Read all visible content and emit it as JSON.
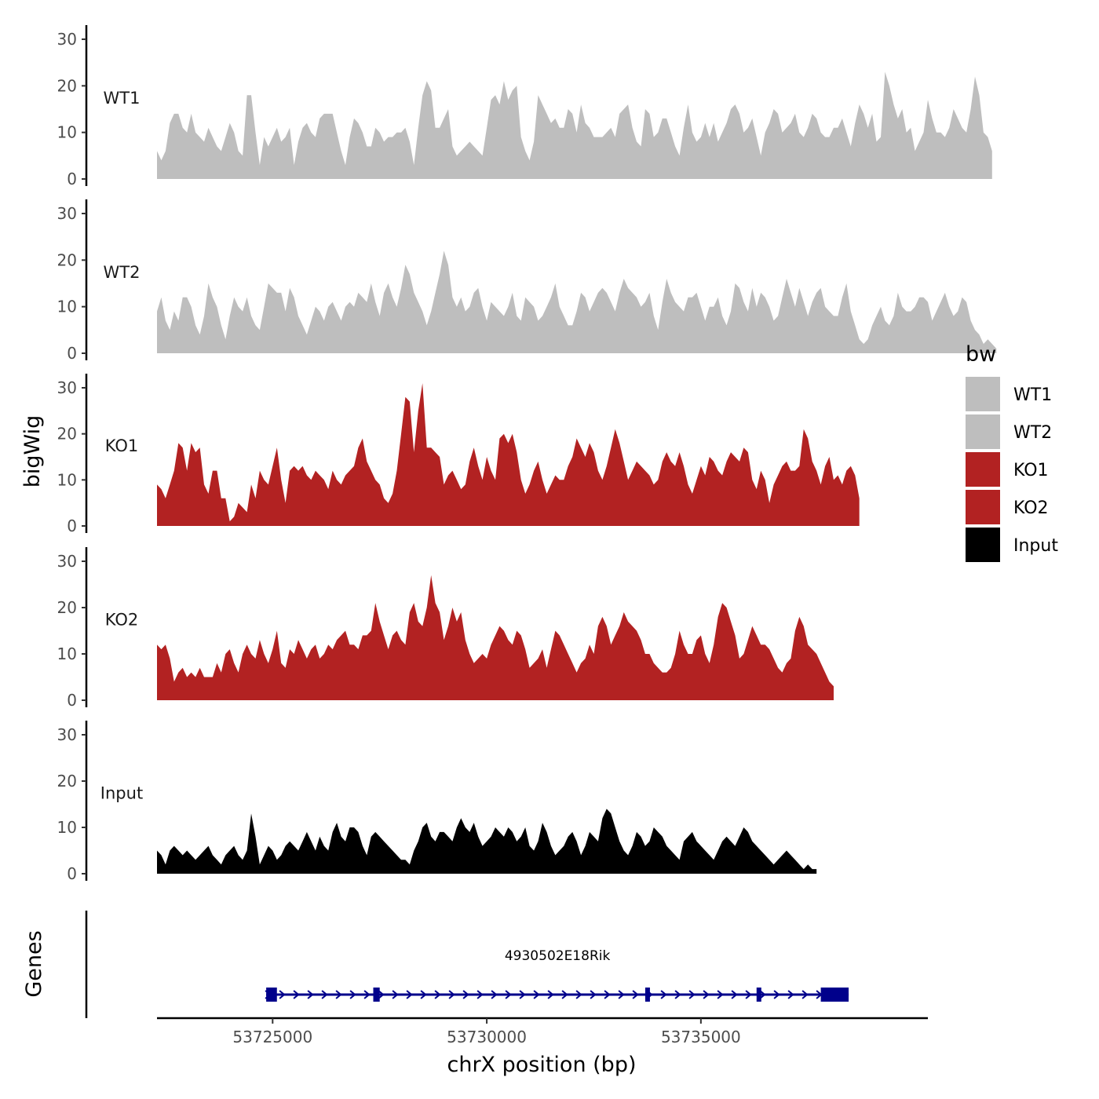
{
  "chart_data": {
    "type": "area",
    "ylabel": "bigWig",
    "xlabel": "chrX position (bp)",
    "ylim": [
      0,
      30
    ],
    "y_ticks": [
      0,
      10,
      20,
      30
    ],
    "xlim": [
      53722300,
      53740300
    ],
    "x_ticks": [
      53725000,
      53730000,
      53735000
    ],
    "x_tick_labels": [
      "53725000",
      "53730000",
      "53735000"
    ],
    "x_start": 53722300,
    "x_step": 100,
    "legend": {
      "title": "bw",
      "entries": [
        {
          "label": "WT1",
          "color": "#bebebe"
        },
        {
          "label": "WT2",
          "color": "#bebebe"
        },
        {
          "label": "KO1",
          "color": "#b22222"
        },
        {
          "label": "KO2",
          "color": "#b22222"
        },
        {
          "label": "Input",
          "color": "#000000"
        }
      ]
    },
    "series": [
      {
        "name": "WT1",
        "color": "#bebebe",
        "values": [
          6,
          4,
          6,
          12,
          14,
          14,
          11,
          10,
          14,
          10,
          9,
          8,
          11,
          9,
          7,
          6,
          9,
          12,
          10,
          6,
          5,
          18,
          18,
          10,
          3,
          9,
          7,
          9,
          11,
          8,
          9,
          11,
          3,
          8,
          11,
          12,
          10,
          9,
          13,
          14,
          14,
          14,
          10,
          6,
          3,
          9,
          13,
          12,
          10,
          7,
          7,
          11,
          10,
          8,
          9,
          9,
          10,
          10,
          11,
          8,
          3,
          11,
          18,
          21,
          19,
          11,
          11,
          13,
          15,
          7,
          5,
          6,
          7,
          8,
          7,
          6,
          5,
          11,
          17,
          18,
          16,
          21,
          17,
          19,
          20,
          9,
          6,
          4,
          8,
          18,
          16,
          14,
          12,
          13,
          11,
          11,
          15,
          14,
          10,
          16,
          12,
          11,
          9,
          9,
          9,
          10,
          11,
          9,
          14,
          15,
          16,
          11,
          8,
          7,
          15,
          14,
          9,
          10,
          13,
          13,
          10,
          7,
          5,
          11,
          16,
          10,
          8,
          9,
          12,
          9,
          12,
          8,
          10,
          12,
          15,
          16,
          14,
          10,
          11,
          13,
          9,
          5,
          10,
          12,
          15,
          14,
          10,
          11,
          12,
          14,
          10,
          9,
          11,
          14,
          13,
          10,
          9,
          9,
          11,
          11,
          13,
          10,
          7,
          12,
          16,
          14,
          11,
          14,
          8,
          9,
          23,
          20,
          16,
          13,
          15,
          10,
          11,
          6,
          8,
          10,
          17,
          13,
          10,
          10,
          9,
          11,
          15,
          13,
          11,
          10,
          15,
          22,
          18,
          10,
          9,
          6
        ]
      },
      {
        "name": "WT2",
        "color": "#bebebe",
        "values": [
          9,
          12,
          7,
          5,
          9,
          7,
          12,
          12,
          10,
          6,
          4,
          8,
          15,
          12,
          10,
          6,
          3,
          8,
          12,
          10,
          9,
          12,
          8,
          6,
          5,
          10,
          15,
          14,
          13,
          13,
          9,
          14,
          12,
          8,
          6,
          4,
          7,
          10,
          9,
          7,
          10,
          11,
          9,
          7,
          10,
          11,
          10,
          13,
          12,
          11,
          15,
          11,
          8,
          13,
          15,
          12,
          10,
          14,
          19,
          17,
          13,
          11,
          9,
          6,
          9,
          13,
          17,
          22,
          19,
          12,
          10,
          12,
          9,
          10,
          13,
          14,
          10,
          7,
          11,
          10,
          9,
          8,
          10,
          13,
          8,
          7,
          12,
          11,
          10,
          7,
          8,
          10,
          12,
          15,
          10,
          8,
          6,
          6,
          9,
          13,
          12,
          9,
          11,
          13,
          14,
          13,
          11,
          9,
          13,
          16,
          14,
          13,
          12,
          10,
          11,
          13,
          8,
          5,
          11,
          16,
          13,
          11,
          10,
          9,
          12,
          12,
          13,
          10,
          7,
          10,
          10,
          12,
          8,
          6,
          9,
          15,
          14,
          11,
          9,
          14,
          10,
          13,
          12,
          10,
          7,
          8,
          12,
          16,
          13,
          10,
          14,
          11,
          8,
          11,
          13,
          14,
          10,
          9,
          8,
          8,
          12,
          15,
          9,
          6,
          3,
          2,
          3,
          6,
          8,
          10,
          7,
          6,
          8,
          13,
          10,
          9,
          9,
          10,
          12,
          12,
          11,
          7,
          9,
          11,
          13,
          10,
          8,
          9,
          12,
          11,
          7,
          5,
          4,
          2,
          3,
          2,
          1
        ]
      },
      {
        "name": "KO1",
        "color": "#b22222",
        "values": [
          9,
          8,
          6,
          9,
          12,
          18,
          17,
          12,
          18,
          16,
          17,
          9,
          7,
          12,
          12,
          6,
          6,
          1,
          2,
          5,
          4,
          3,
          9,
          6,
          12,
          10,
          9,
          13,
          17,
          10,
          5,
          12,
          13,
          12,
          13,
          11,
          10,
          12,
          11,
          10,
          8,
          12,
          10,
          9,
          11,
          12,
          13,
          17,
          19,
          14,
          12,
          10,
          9,
          6,
          5,
          7,
          12,
          20,
          28,
          27,
          16,
          25,
          31,
          17,
          17,
          16,
          15,
          9,
          11,
          12,
          10,
          8,
          9,
          14,
          17,
          13,
          10,
          15,
          12,
          10,
          19,
          20,
          18,
          20,
          16,
          10,
          7,
          9,
          12,
          14,
          10,
          7,
          9,
          11,
          10,
          10,
          13,
          15,
          19,
          17,
          15,
          18,
          16,
          12,
          10,
          13,
          17,
          21,
          18,
          14,
          10,
          12,
          14,
          13,
          12,
          11,
          9,
          10,
          14,
          16,
          14,
          13,
          16,
          13,
          9,
          7,
          10,
          13,
          11,
          15,
          14,
          12,
          11,
          14,
          16,
          15,
          14,
          17,
          16,
          10,
          8,
          12,
          10,
          5,
          9,
          11,
          13,
          14,
          12,
          12,
          13,
          21,
          19,
          14,
          12,
          9,
          13,
          15,
          10,
          11,
          9,
          12,
          13,
          11,
          6
        ]
      },
      {
        "name": "KO2",
        "color": "#b22222",
        "values": [
          12,
          11,
          12,
          9,
          4,
          6,
          7,
          5,
          6,
          5,
          7,
          5,
          5,
          5,
          8,
          6,
          10,
          11,
          8,
          6,
          10,
          12,
          10,
          9,
          13,
          10,
          8,
          11,
          15,
          8,
          7,
          11,
          10,
          13,
          11,
          9,
          11,
          12,
          9,
          10,
          12,
          11,
          13,
          14,
          15,
          12,
          12,
          11,
          14,
          14,
          15,
          21,
          17,
          14,
          11,
          14,
          15,
          13,
          12,
          19,
          21,
          17,
          16,
          20,
          27,
          21,
          19,
          13,
          16,
          20,
          17,
          19,
          13,
          10,
          8,
          9,
          10,
          9,
          12,
          14,
          16,
          15,
          13,
          12,
          15,
          14,
          11,
          7,
          8,
          9,
          11,
          7,
          11,
          15,
          14,
          12,
          10,
          8,
          6,
          8,
          9,
          12,
          10,
          16,
          18,
          16,
          12,
          14,
          16,
          19,
          17,
          16,
          15,
          13,
          10,
          10,
          8,
          7,
          6,
          6,
          7,
          10,
          15,
          12,
          10,
          10,
          13,
          14,
          10,
          8,
          12,
          18,
          21,
          20,
          17,
          14,
          9,
          10,
          13,
          16,
          14,
          12,
          12,
          11,
          9,
          7,
          6,
          8,
          9,
          15,
          18,
          16,
          12,
          11,
          10,
          8,
          6,
          4,
          3
        ]
      },
      {
        "name": "Input",
        "color": "#000000",
        "values": [
          5,
          4,
          2,
          5,
          6,
          5,
          4,
          5,
          4,
          3,
          4,
          5,
          6,
          4,
          3,
          2,
          4,
          5,
          6,
          4,
          3,
          5,
          13,
          8,
          2,
          4,
          6,
          5,
          3,
          4,
          6,
          7,
          6,
          5,
          7,
          9,
          7,
          5,
          8,
          6,
          5,
          9,
          11,
          8,
          7,
          10,
          10,
          9,
          6,
          4,
          8,
          9,
          8,
          7,
          6,
          5,
          4,
          3,
          3,
          2,
          5,
          7,
          10,
          11,
          8,
          7,
          9,
          9,
          8,
          7,
          10,
          12,
          10,
          9,
          11,
          8,
          6,
          7,
          8,
          10,
          9,
          8,
          10,
          9,
          7,
          8,
          10,
          6,
          5,
          7,
          11,
          9,
          6,
          4,
          5,
          6,
          8,
          9,
          7,
          4,
          6,
          9,
          8,
          7,
          12,
          14,
          13,
          10,
          7,
          5,
          4,
          6,
          9,
          8,
          6,
          7,
          10,
          9,
          8,
          6,
          5,
          4,
          3,
          7,
          8,
          9,
          7,
          6,
          5,
          4,
          3,
          5,
          7,
          8,
          7,
          6,
          8,
          10,
          9,
          7,
          6,
          5,
          4,
          3,
          2,
          3,
          4,
          5,
          4,
          3,
          2,
          1,
          2,
          1,
          1
        ]
      }
    ],
    "genes_track": {
      "label": "Genes",
      "gene_name": "4930502E18Rik",
      "color": "#00008b",
      "strand": "+",
      "start": 53724850,
      "end": 53738450,
      "exons": [
        [
          53724850,
          53725100
        ],
        [
          53727350,
          53727500
        ],
        [
          53733700,
          53733800
        ],
        [
          53736300,
          53736400
        ],
        [
          53737800,
          53738450
        ]
      ]
    }
  }
}
